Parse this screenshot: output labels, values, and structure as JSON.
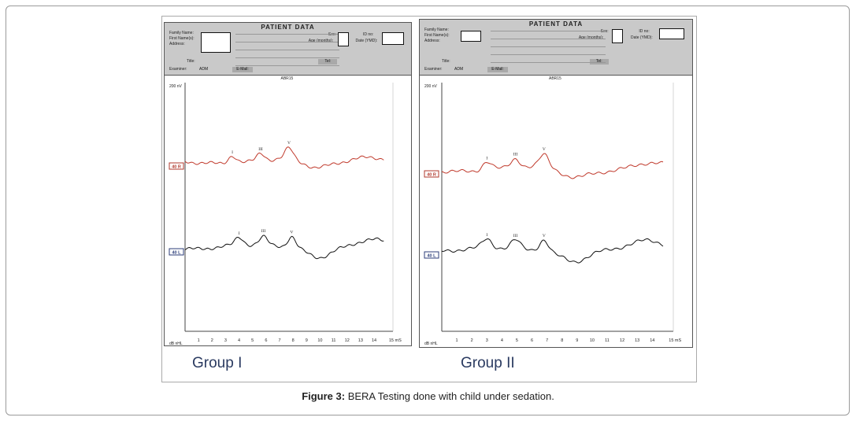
{
  "caption": {
    "label": "Figure 3:",
    "text": " BERA Testing done with child under sedation."
  },
  "form": {
    "header": "PATIENT DATA",
    "family_name": "Family Name:",
    "first_names": "First Name(s):",
    "address": "Address:",
    "title": "Title:",
    "tel": "Tel:",
    "examiner": "Examiner:",
    "examiner_value": "ADM",
    "email": "E-Mail:",
    "sex": "Sex:",
    "age": "Age (months):",
    "id_no": "ID no:",
    "date": "Date (YMD):",
    "test": "ABR15",
    "scale": "200 nV",
    "x_unit": "dB nHL",
    "x_end": "15 mS"
  },
  "x_ticks": [
    "1",
    "2",
    "3",
    "4",
    "5",
    "6",
    "7",
    "8",
    "9",
    "10",
    "11",
    "12",
    "13",
    "14"
  ],
  "panels": [
    {
      "group": "Group I",
      "traces": [
        {
          "label": "40 R",
          "color": "#c0392b",
          "label_color": "#b03a2e",
          "peaks": [
            {
              "name": "I",
              "ms": 3.5
            },
            {
              "name": "III",
              "ms": 5.6
            },
            {
              "name": "V",
              "ms": 7.7
            }
          ]
        },
        {
          "label": "40 L",
          "color": "#111111",
          "label_color": "#2c3e7a",
          "peaks": [
            {
              "name": "I",
              "ms": 4.0
            },
            {
              "name": "III",
              "ms": 5.8
            },
            {
              "name": "V",
              "ms": 7.9
            }
          ]
        }
      ]
    },
    {
      "group": "Group II",
      "traces": [
        {
          "label": "40 R",
          "color": "#c0392b",
          "label_color": "#b03a2e",
          "peaks": [
            {
              "name": "I",
              "ms": 3.0
            },
            {
              "name": "III",
              "ms": 4.9
            },
            {
              "name": "V",
              "ms": 6.8
            }
          ]
        },
        {
          "label": "40 L",
          "color": "#111111",
          "label_color": "#2c3e7a",
          "peaks": [
            {
              "name": "I",
              "ms": 3.0
            },
            {
              "name": "III",
              "ms": 4.9
            },
            {
              "name": "V",
              "ms": 6.8
            }
          ]
        }
      ]
    }
  ]
}
